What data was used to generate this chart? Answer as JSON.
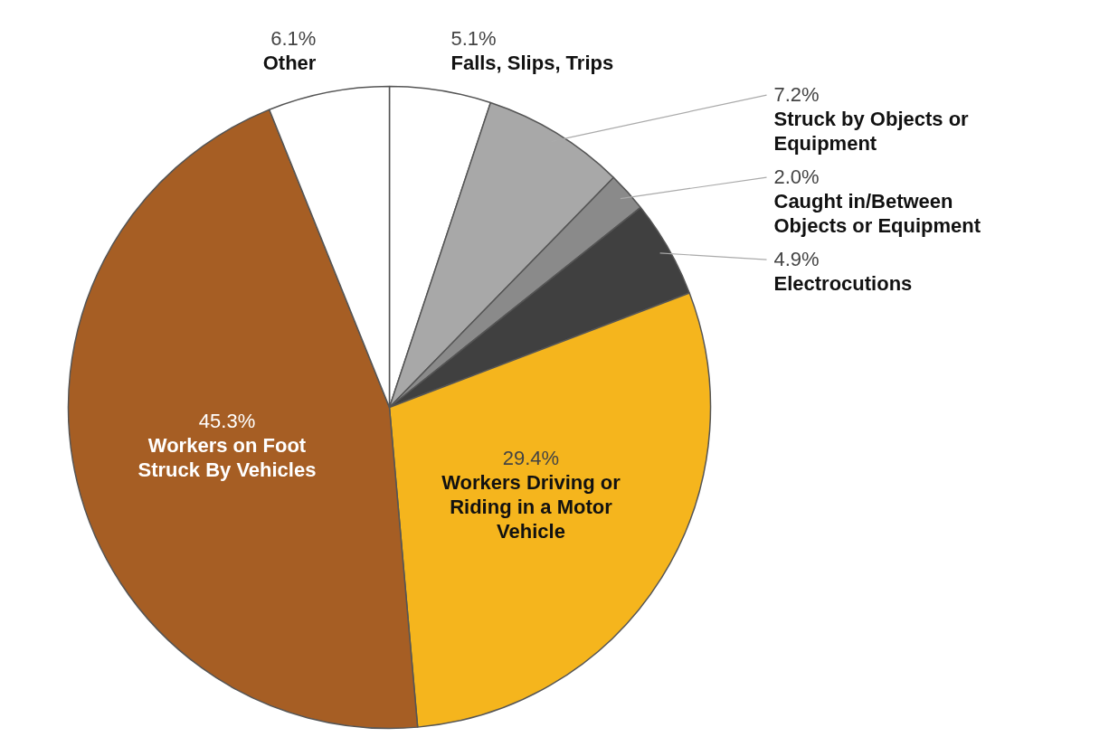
{
  "chart_data": {
    "type": "pie",
    "categories": [
      "Falls, Slips, Trips",
      "Struck by Objects or Equipment",
      "Caught in/Between Objects or Equipment",
      "Electrocutions",
      "Workers Driving or Riding in a Motor Vehicle",
      "Workers on Foot Struck By Vehicles",
      "Other"
    ],
    "values": [
      5.1,
      7.2,
      2.0,
      4.9,
      29.4,
      45.3,
      6.1
    ],
    "colors": [
      "#ffffff",
      "#a8a8a8",
      "#8a8a8a",
      "#404040",
      "#f5b51d",
      "#a65e24",
      "#ffffff"
    ],
    "value_labels": [
      "5.1%",
      "7.2%",
      "2.0%",
      "4.9%",
      "29.4%",
      "45.3%",
      "6.1%"
    ]
  }
}
